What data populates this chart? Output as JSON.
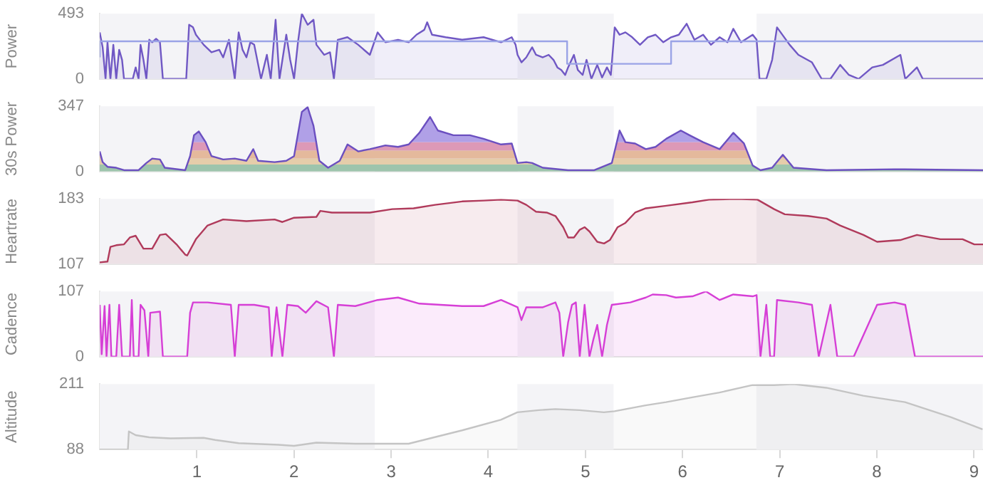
{
  "chart_data": [
    {
      "type": "area",
      "ylabel": "Power",
      "xlim": [
        0,
        9.09
      ],
      "xticks": [
        1,
        2,
        3,
        4,
        5,
        6,
        7,
        8,
        9
      ],
      "ylim": [
        0,
        493
      ],
      "yticks": [
        0,
        493
      ],
      "tick_labels": "y",
      "bands": [
        {
          "axis": "x",
          "from": 0,
          "to": 2.83,
          "color": "#f4f4f7"
        },
        {
          "axis": "x",
          "from": 4.3,
          "to": 5.29,
          "color": "#f4f4f7"
        },
        {
          "axis": "x",
          "from": 6.76,
          "to": 9.09,
          "color": "#f4f4f7"
        }
      ],
      "series": [
        {
          "type": "step",
          "color": "#9aa3e6",
          "x": [
            0,
            4.81,
            5.88,
            7.14,
            9.09
          ],
          "values": [
            163,
            284,
            114,
            284,
            284
          ]
        },
        {
          "color": "#7058c4",
          "x": [
            0,
            0.03,
            0.06,
            0.08,
            0.11,
            0.14,
            0.17,
            0.2,
            0.23,
            0.25,
            0.34,
            0.37,
            0.4,
            0.42,
            0.45,
            0.48,
            0.51,
            0.54,
            0.58,
            0.62,
            0.65,
            0.89,
            0.92,
            0.96,
            0.99,
            1.07,
            1.15,
            1.23,
            1.27,
            1.33,
            1.39,
            1.43,
            1.47,
            1.51,
            1.55,
            1.59,
            1.66,
            1.72,
            1.76,
            1.81,
            1.85,
            1.92,
            1.96,
            2,
            2.04,
            2.08,
            2.14,
            2.2,
            2.23,
            2.31,
            2.37,
            2.41,
            2.45,
            2.55,
            2.66,
            2.78,
            2.86,
            2.94,
            3.07,
            3.18,
            3.26,
            3.34,
            3.37,
            3.42,
            3.56,
            3.73,
            3.95,
            4.13,
            4.24,
            4.28,
            4.3,
            4.34,
            4.39,
            4.45,
            4.49,
            4.56,
            4.62,
            4.67,
            4.71,
            4.75,
            4.79,
            4.82,
            4.88,
            4.92,
            4.97,
            5.01,
            5.06,
            5.12,
            5.17,
            5.22,
            5.26,
            5.3,
            5.35,
            5.41,
            5.48,
            5.56,
            5.64,
            5.72,
            5.8,
            5.88,
            5.96,
            6.04,
            6.12,
            6.21,
            6.29,
            6.38,
            6.46,
            6.52,
            6.6,
            6.72,
            6.76,
            6.79,
            6.86,
            6.92,
            6.97,
            7.1,
            7.19,
            7.33,
            7.43,
            7.52,
            7.62,
            7.71,
            7.81,
            7.95,
            8.06,
            8.24,
            8.29,
            8.41,
            8.47,
            9.09
          ],
          "values": [
            352,
            239,
            0,
            277,
            0,
            258,
            0,
            220,
            144,
            0,
            0,
            87,
            0,
            258,
            144,
            0,
            296,
            277,
            303,
            277,
            0,
            0,
            409,
            390,
            334,
            258,
            201,
            220,
            163,
            296,
            0,
            352,
            220,
            163,
            277,
            258,
            0,
            182,
            0,
            447,
            0,
            334,
            144,
            0,
            277,
            493,
            409,
            447,
            258,
            182,
            201,
            0,
            296,
            315,
            258,
            182,
            352,
            277,
            296,
            277,
            334,
            371,
            428,
            334,
            315,
            296,
            315,
            277,
            315,
            258,
            182,
            125,
            163,
            239,
            182,
            163,
            182,
            144,
            87,
            68,
            30,
            87,
            182,
            68,
            30,
            144,
            0,
            106,
            11,
            87,
            30,
            390,
            334,
            352,
            315,
            258,
            315,
            334,
            277,
            315,
            334,
            417,
            296,
            334,
            258,
            315,
            277,
            379,
            277,
            334,
            296,
            0,
            0,
            144,
            390,
            258,
            182,
            125,
            0,
            0,
            106,
            30,
            0,
            87,
            106,
            182,
            0,
            87,
            0,
            0
          ]
        }
      ]
    },
    {
      "type": "area",
      "ylabel": "30s Power",
      "xlim": [
        0,
        9.09
      ],
      "xticks": [
        1,
        2,
        3,
        4,
        5,
        6,
        7,
        8,
        9
      ],
      "ylim": [
        0,
        347
      ],
      "yticks": [
        0,
        347
      ],
      "tick_labels": "y",
      "bands": [
        {
          "axis": "x",
          "from": 0,
          "to": 2.83,
          "color": "#f4f4f7"
        },
        {
          "axis": "x",
          "from": 4.3,
          "to": 5.29,
          "color": "#f4f4f7"
        },
        {
          "axis": "x",
          "from": 6.76,
          "to": 9.09,
          "color": "#f4f4f7"
        },
        {
          "axis": "y",
          "from": 0,
          "to": 37,
          "color": "#a6d9a8"
        },
        {
          "axis": "y",
          "from": 37,
          "to": 69,
          "color": "#fbe3a6"
        },
        {
          "axis": "y",
          "from": 69,
          "to": 112,
          "color": "#f9cc96"
        },
        {
          "axis": "y",
          "from": 112,
          "to": 156,
          "color": "#f1a6b6"
        },
        {
          "axis": "y",
          "from": 156,
          "to": 347,
          "color": "#bcaeee"
        }
      ],
      "series": [
        {
          "color": "#6b4fc0",
          "x": [
            0,
            0.03,
            0.08,
            0.17,
            0.25,
            0.4,
            0.48,
            0.54,
            0.62,
            0.67,
            0.88,
            0.93,
            0.97,
            1.02,
            1.09,
            1.15,
            1.27,
            1.39,
            1.51,
            1.58,
            1.63,
            1.8,
            1.92,
            2,
            2.08,
            2.14,
            2.2,
            2.26,
            2.35,
            2.47,
            2.55,
            2.66,
            2.78,
            2.94,
            3.07,
            3.18,
            3.29,
            3.4,
            3.48,
            3.64,
            3.81,
            3.95,
            4.13,
            4.24,
            4.3,
            4.39,
            4.45,
            4.56,
            4.82,
            5.09,
            5.27,
            5.35,
            5.41,
            5.51,
            5.62,
            5.72,
            5.83,
            5.98,
            6.07,
            6.21,
            6.38,
            6.52,
            6.63,
            6.72,
            6.8,
            6.92,
            7.03,
            7.14,
            7.48,
            8.18,
            9.09
          ],
          "values": [
            107,
            50,
            25,
            20,
            7,
            7,
            45,
            69,
            64,
            20,
            7,
            82,
            193,
            213,
            156,
            82,
            64,
            69,
            57,
            119,
            57,
            50,
            57,
            82,
            317,
            342,
            243,
            57,
            20,
            57,
            144,
            107,
            119,
            139,
            131,
            144,
            206,
            290,
            218,
            193,
            193,
            174,
            144,
            149,
            45,
            50,
            45,
            20,
            7,
            7,
            45,
            218,
            156,
            149,
            119,
            131,
            174,
            218,
            193,
            156,
            119,
            206,
            149,
            32,
            7,
            20,
            89,
            20,
            7,
            12,
            7
          ]
        }
      ]
    },
    {
      "type": "area",
      "ylabel": "Heartrate",
      "xlim": [
        0,
        9.09
      ],
      "xticks": [
        1,
        2,
        3,
        4,
        5,
        6,
        7,
        8,
        9
      ],
      "ylim": [
        107,
        183
      ],
      "yticks": [
        107,
        183
      ],
      "tick_labels": "y",
      "bands": [
        {
          "axis": "x",
          "from": 0,
          "to": 2.83,
          "color": "#f4f4f7"
        },
        {
          "axis": "x",
          "from": 4.3,
          "to": 5.29,
          "color": "#f4f4f7"
        },
        {
          "axis": "x",
          "from": 6.76,
          "to": 9.09,
          "color": "#f4f4f7"
        }
      ],
      "series": [
        {
          "color": "#b03a5b",
          "x": [
            0,
            0.08,
            0.11,
            0.17,
            0.25,
            0.31,
            0.37,
            0.45,
            0.54,
            0.62,
            0.68,
            0.79,
            0.88,
            0.9,
            0.99,
            1.11,
            1.27,
            1.51,
            1.8,
            1.88,
            2,
            2.23,
            2.27,
            2.39,
            2.78,
            3.01,
            3.23,
            3.45,
            3.73,
            3.95,
            4.13,
            4.3,
            4.39,
            4.49,
            4.6,
            4.69,
            4.77,
            4.82,
            4.88,
            4.94,
            4.99,
            5.04,
            5.12,
            5.19,
            5.25,
            5.33,
            5.41,
            5.51,
            5.62,
            5.83,
            6.1,
            6.27,
            6.55,
            6.77,
            6.94,
            7.05,
            7.29,
            7.48,
            7.62,
            7.86,
            8,
            8.24,
            8.41,
            8.65,
            8.88,
            9,
            9.09
          ],
          "values": [
            109,
            110,
            127,
            129,
            130,
            138,
            140,
            125,
            125,
            141,
            142,
            130,
            118,
            117,
            136,
            152,
            159,
            157,
            159,
            156,
            161,
            162,
            169,
            167,
            167,
            171,
            172,
            176,
            180,
            181,
            182,
            181,
            176,
            168,
            167,
            163,
            150,
            138,
            138,
            147,
            150,
            145,
            133,
            131,
            135,
            150,
            155,
            167,
            172,
            175,
            179,
            182,
            183,
            182,
            171,
            165,
            163,
            160,
            152,
            141,
            133,
            135,
            141,
            136,
            136,
            130,
            130
          ]
        }
      ]
    },
    {
      "type": "area",
      "ylabel": "Cadence",
      "xlim": [
        0,
        9.09
      ],
      "xticks": [
        1,
        2,
        3,
        4,
        5,
        6,
        7,
        8,
        9
      ],
      "ylim": [
        0,
        107
      ],
      "yticks": [
        0,
        107
      ],
      "tick_labels": "y",
      "bands": [
        {
          "axis": "x",
          "from": 0,
          "to": 2.83,
          "color": "#f4f4f7"
        },
        {
          "axis": "x",
          "from": 4.3,
          "to": 5.29,
          "color": "#f4f4f7"
        },
        {
          "axis": "x",
          "from": 6.76,
          "to": 9.09,
          "color": "#f4f4f7"
        }
      ],
      "series": [
        {
          "color": "#d63fd6",
          "x": [
            0,
            0.02,
            0.05,
            0.07,
            0.1,
            0.12,
            0.17,
            0.2,
            0.23,
            0.31,
            0.33,
            0.35,
            0.4,
            0.42,
            0.46,
            0.5,
            0.52,
            0.62,
            0.65,
            0.9,
            0.93,
            0.96,
            1.11,
            1.35,
            1.39,
            1.43,
            1.59,
            1.74,
            1.77,
            1.82,
            1.88,
            1.93,
            2.04,
            2.12,
            2.23,
            2.35,
            2.41,
            2.45,
            2.63,
            2.86,
            3.07,
            3.29,
            3.51,
            3.73,
            3.95,
            4.13,
            4.3,
            4.34,
            4.39,
            4.56,
            4.69,
            4.73,
            4.77,
            4.82,
            4.86,
            4.9,
            4.94,
            4.99,
            5.04,
            5.08,
            5.12,
            5.17,
            5.22,
            5.27,
            5.46,
            5.62,
            5.69,
            5.83,
            5.93,
            6.1,
            6.24,
            6.38,
            6.52,
            6.72,
            6.76,
            6.8,
            6.86,
            6.9,
            6.94,
            6.97,
            7.19,
            7.33,
            7.4,
            7.52,
            7.59,
            7.76,
            8,
            8.18,
            8.29,
            8.39,
            9.09
          ],
          "values": [
            85,
            4,
            83,
            0,
            85,
            0,
            0,
            85,
            0,
            0,
            93,
            0,
            0,
            85,
            76,
            0,
            72,
            74,
            0,
            0,
            72,
            89,
            89,
            85,
            0,
            85,
            85,
            81,
            0,
            81,
            0,
            85,
            83,
            72,
            91,
            81,
            0,
            85,
            83,
            93,
            97,
            87,
            85,
            83,
            83,
            93,
            81,
            60,
            81,
            81,
            89,
            72,
            0,
            56,
            85,
            89,
            0,
            85,
            0,
            28,
            52,
            0,
            52,
            85,
            89,
            97,
            102,
            101,
            97,
            99,
            107,
            93,
            102,
            99,
            101,
            0,
            85,
            0,
            0,
            93,
            89,
            85,
            0,
            85,
            0,
            0,
            85,
            89,
            85,
            0,
            0
          ]
        }
      ]
    },
    {
      "type": "area",
      "ylabel": "Altitude",
      "xlim": [
        0,
        9.09
      ],
      "xticks": [
        1,
        2,
        3,
        4,
        5,
        6,
        7,
        8,
        9
      ],
      "ylim": [
        88,
        211
      ],
      "yticks": [
        88,
        211
      ],
      "bands": [
        {
          "axis": "x",
          "from": 0,
          "to": 2.83,
          "color": "#f4f4f7"
        },
        {
          "axis": "x",
          "from": 4.3,
          "to": 5.29,
          "color": "#f4f4f7"
        },
        {
          "axis": "x",
          "from": 6.76,
          "to": 9.09,
          "color": "#f4f4f7"
        }
      ],
      "series": [
        {
          "color": "#c4c4c4",
          "x": [
            0,
            0.29,
            0.3,
            0.37,
            0.51,
            0.73,
            1.07,
            1.19,
            1.43,
            1.84,
            2,
            2.23,
            2.63,
            3.18,
            3.29,
            3.73,
            4.13,
            4.3,
            4.52,
            4.69,
            4.94,
            5.19,
            5.3,
            5.62,
            5.83,
            6.1,
            6.38,
            6.72,
            6.94,
            7.14,
            7.48,
            7.86,
            8.29,
            8.76,
            9.09
          ],
          "values": [
            88,
            88,
            122,
            115,
            111,
            109,
            110,
            106,
            100,
            97,
            95,
            101,
            99,
            99,
            104,
            124,
            144,
            158,
            162,
            164,
            162,
            158,
            160,
            171,
            177,
            186,
            195,
            209,
            209,
            211,
            204,
            189,
            177,
            149,
            126
          ]
        }
      ]
    }
  ]
}
